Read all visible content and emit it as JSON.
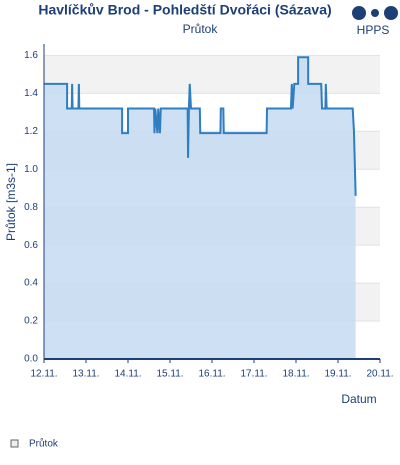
{
  "chart_data": {
    "type": "area",
    "title": "Havlíčkův Brod - Pohledští Dvořáci (Sázava)",
    "subtitle": "Průtok",
    "logo": "HPPS",
    "y_label": "Průtok [m3s-1]",
    "x_label": "Datum",
    "xlim": [
      12,
      20
    ],
    "xticks": [
      {
        "value": 12,
        "label": "12.11."
      },
      {
        "value": 13,
        "label": "13.11."
      },
      {
        "value": 14,
        "label": "14.11."
      },
      {
        "value": 15,
        "label": "15.11."
      },
      {
        "value": 16,
        "label": "16.11."
      },
      {
        "value": 17,
        "label": "17.11."
      },
      {
        "value": 18,
        "label": "18.11."
      },
      {
        "value": 19,
        "label": "19.11."
      },
      {
        "value": 20,
        "label": "20.11."
      }
    ],
    "ylim": [
      0,
      1.66
    ],
    "yticks": [
      {
        "value": 0,
        "label": "0.0"
      },
      0.2,
      0.4,
      0.6,
      0.8,
      {
        "value": 1,
        "label": "1.0"
      },
      1.2,
      1.4,
      1.6
    ],
    "grid": true,
    "x": [
      12.0,
      12.55,
      12.55,
      12.66,
      12.67,
      12.68,
      12.82,
      12.83,
      12.84,
      13.86,
      13.86,
      14.0,
      14.0,
      14.62,
      14.63,
      14.65,
      14.7,
      14.72,
      14.76,
      14.78,
      15.42,
      15.43,
      15.45,
      15.47,
      15.5,
      15.71,
      15.72,
      16.2,
      16.21,
      16.27,
      16.28,
      17.3,
      17.31,
      17.88,
      17.9,
      17.92,
      17.96,
      18.05,
      18.05,
      18.29,
      18.29,
      18.6,
      18.62,
      18.7,
      18.71,
      18.73,
      19.35,
      19.38,
      19.42
    ],
    "series": [
      {
        "name": "Průtok",
        "color": "#2f7ec1",
        "fill": "#c5dcf2",
        "values": [
          1.45,
          1.45,
          1.32,
          1.32,
          1.45,
          1.32,
          1.32,
          1.45,
          1.32,
          1.32,
          1.19,
          1.19,
          1.32,
          1.32,
          1.19,
          1.32,
          1.19,
          1.32,
          1.19,
          1.32,
          1.32,
          1.06,
          1.32,
          1.45,
          1.32,
          1.32,
          1.19,
          1.19,
          1.32,
          1.32,
          1.19,
          1.19,
          1.32,
          1.32,
          1.45,
          1.32,
          1.45,
          1.45,
          1.59,
          1.59,
          1.45,
          1.45,
          1.32,
          1.32,
          1.45,
          1.32,
          1.32,
          1.2,
          0.86
        ]
      }
    ]
  }
}
